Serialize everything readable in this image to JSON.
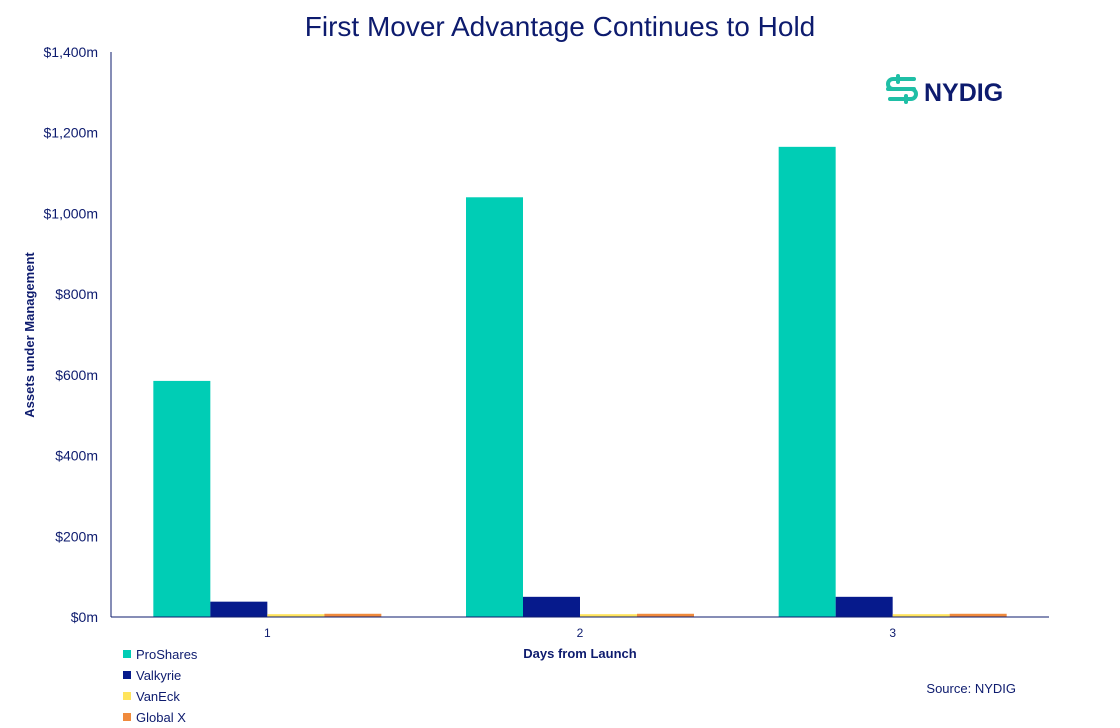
{
  "chart_data": {
    "type": "bar",
    "title": "First Mover Advantage Continues to Hold",
    "xlabel": "Days from Launch",
    "ylabel": "Assets under Management",
    "categories": [
      "1",
      "2",
      "3"
    ],
    "ylim": [
      0,
      1400
    ],
    "yticks": [
      0,
      200,
      400,
      600,
      800,
      1000,
      1200,
      1400
    ],
    "ytick_labels": [
      "$0m",
      "$200m",
      "$400m",
      "$600m",
      "$800m",
      "$1,000m",
      "$1,200m",
      "$1,400m"
    ],
    "grid": false,
    "legend_position": "bottom-left",
    "series": [
      {
        "name": "ProShares",
        "color": "#00cdb5",
        "values": [
          585,
          1040,
          1165
        ]
      },
      {
        "name": "Valkyrie",
        "color": "#061a8c",
        "values": [
          38,
          50,
          50
        ]
      },
      {
        "name": "VanEck",
        "color": "#ffe45c",
        "values": [
          7,
          7,
          7
        ]
      },
      {
        "name": "Global X",
        "color": "#f08a3c",
        "values": [
          8,
          8,
          8
        ]
      }
    ],
    "source": "Source: NYDIG"
  },
  "logo": {
    "text": "NYDIG",
    "icon": "nydig-logo-icon",
    "color": "#1fbfa6"
  },
  "colors": {
    "text": "#0d1b6e",
    "axis": "#0d1b6e"
  }
}
